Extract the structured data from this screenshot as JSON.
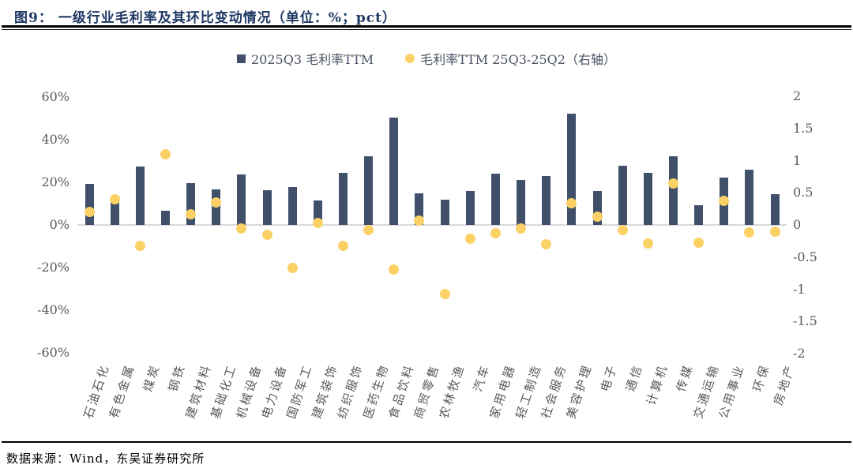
{
  "header": {
    "title": "图9：  一级行业毛利率及其环比变动情况（单位：%；pct）"
  },
  "legend": {
    "bar_label": "2025Q3 毛利率TTM",
    "dot_label": "毛利率TTM 25Q3-25Q2（右轴）"
  },
  "footer": {
    "source": "数据来源：Wind，东吴证券研究所"
  },
  "colors": {
    "bar": "#41506a",
    "dot": "#fbd166",
    "title": "#1f3864",
    "axis_text": "#595959",
    "zero_line": "#d9d9d9"
  },
  "chart_data": {
    "type": "bar",
    "subtype": "combo-bar-scatter",
    "title": "一级行业毛利率及其环比变动情况（单位：%；pct）",
    "grid": "zero-line-only",
    "legend_position": "top-center",
    "categories": [
      "石油石化",
      "有色金属",
      "煤炭",
      "钢铁",
      "建筑材料",
      "基础化工",
      "机械设备",
      "电力设备",
      "国防军工",
      "建筑装饰",
      "纺织服饰",
      "医药生物",
      "食品饮料",
      "商贸零售",
      "农林牧渔",
      "汽车",
      "家用电器",
      "轻工制造",
      "社会服务",
      "美容护理",
      "电子",
      "通信",
      "计算机",
      "传媒",
      "交通运输",
      "公用事业",
      "环保",
      "房地产"
    ],
    "series": [
      {
        "name": "2025Q3 毛利率TTM",
        "type": "bar",
        "axis": "left",
        "unit": "%",
        "values": [
          19.4,
          12,
          27.5,
          6.8,
          19.6,
          16.6,
          23.6,
          16.2,
          17.6,
          11.4,
          24.6,
          32.2,
          50.2,
          15,
          12,
          16,
          24.2,
          21,
          23,
          52.4,
          15.8,
          27.8,
          24.4,
          32.4,
          9.2,
          22.4,
          25.8,
          14.6
        ]
      },
      {
        "name": "毛利率TTM 25Q3-25Q2（右轴）",
        "type": "scatter",
        "axis": "right",
        "unit": "pct",
        "values": [
          0.2,
          0.4,
          -0.33,
          1.1,
          0.17,
          0.35,
          -0.05,
          -0.15,
          -0.67,
          0.03,
          -0.33,
          -0.08,
          -0.69,
          0.07,
          -1.07,
          -0.22,
          -0.13,
          -0.06,
          -0.3,
          0.34,
          0.13,
          -0.08,
          -0.29,
          0.64,
          -0.28,
          0.37,
          -0.12,
          -0.1
        ]
      }
    ],
    "left_axis": {
      "ticks": [
        "60%",
        "40%",
        "20%",
        "0%",
        "-20%",
        "-40%",
        "-60%"
      ],
      "values": [
        60,
        40,
        20,
        0,
        -20,
        -40,
        -60
      ],
      "min": -60,
      "max": 60
    },
    "right_axis": {
      "ticks": [
        "2",
        "1.5",
        "1",
        "0.5",
        "0",
        "-0.5",
        "-1",
        "-1.5",
        "-2"
      ],
      "values": [
        2,
        1.5,
        1,
        0.5,
        0,
        -0.5,
        -1,
        -1.5,
        -2
      ],
      "min": -2,
      "max": 2
    }
  }
}
